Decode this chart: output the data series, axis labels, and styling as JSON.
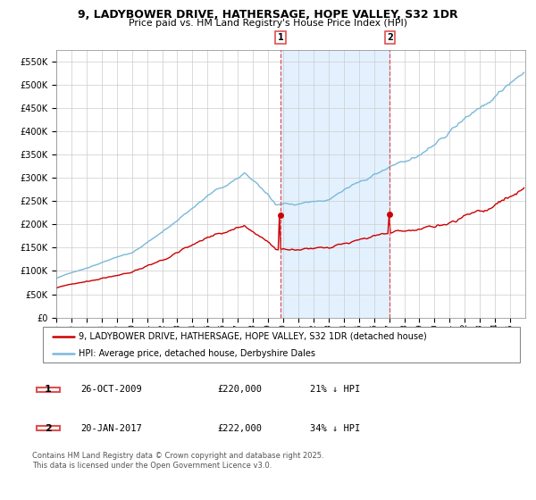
{
  "title": "9, LADYBOWER DRIVE, HATHERSAGE, HOPE VALLEY, S32 1DR",
  "subtitle": "Price paid vs. HM Land Registry's House Price Index (HPI)",
  "ylim": [
    0,
    575000
  ],
  "yticks": [
    0,
    50000,
    100000,
    150000,
    200000,
    250000,
    300000,
    350000,
    400000,
    450000,
    500000,
    550000
  ],
  "ytick_labels": [
    "£0",
    "£50K",
    "£100K",
    "£150K",
    "£200K",
    "£250K",
    "£300K",
    "£350K",
    "£400K",
    "£450K",
    "£500K",
    "£550K"
  ],
  "hpi_color": "#7ab8d9",
  "price_color": "#cc0000",
  "vline_color": "#e05050",
  "shade_color": "#ddeeff",
  "t1_date_num": 14178,
  "t2_date_num": 17186,
  "t1_price": 220000,
  "t2_price": 222000,
  "legend_entries": [
    "9, LADYBOWER DRIVE, HATHERSAGE, HOPE VALLEY, S32 1DR (detached house)",
    "HPI: Average price, detached house, Derbyshire Dales"
  ],
  "footnote": "Contains HM Land Registry data © Crown copyright and database right 2025.\nThis data is licensed under the Open Government Licence v3.0.",
  "table_rows": [
    [
      "1",
      "26-OCT-2009",
      "£220,000",
      "21% ↓ HPI"
    ],
    [
      "2",
      "20-JAN-2017",
      "£222,000",
      "34% ↓ HPI"
    ]
  ],
  "x_start_year": 1995,
  "x_end_year": 2025
}
